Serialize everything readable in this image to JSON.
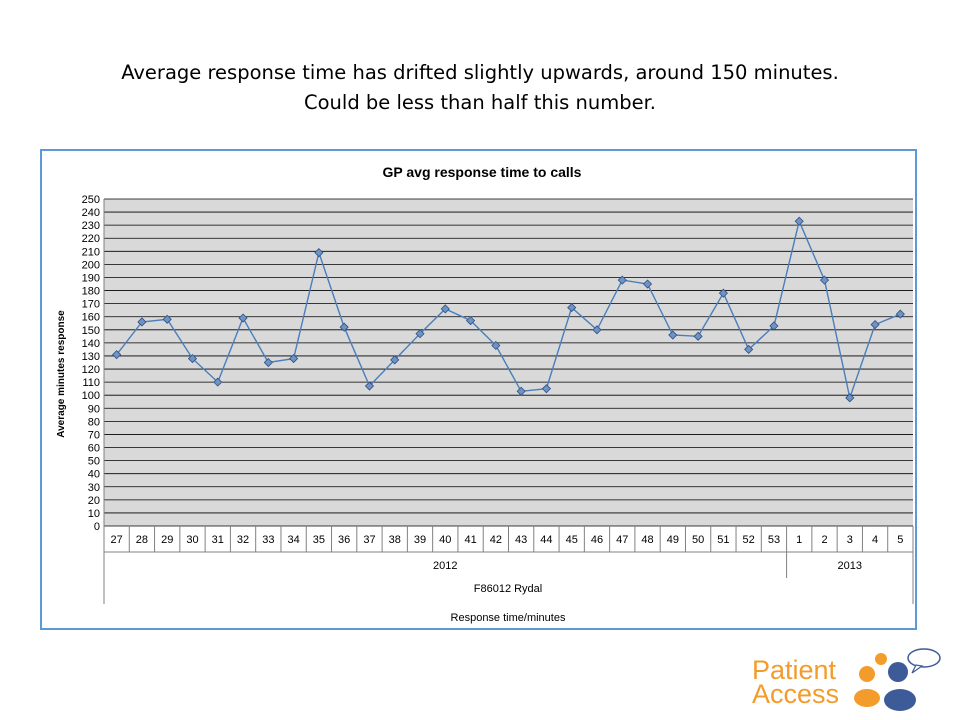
{
  "heading": {
    "line1": "Average response time has drifted slightly upwards, around 150 minutes.",
    "line2": "Could be less than half this number."
  },
  "logo": {
    "line1": "Patient",
    "line2": "Access",
    "icon": "people-speech-bubble-icon"
  },
  "colors": {
    "plot_background": "#d9d9d9",
    "line": "#4a7ebb",
    "marker": "#6f93c5",
    "frame": "#5b9bd5",
    "logo_orange": "#f39c2b",
    "logo_blue": "#3d5a99"
  },
  "chart_data": {
    "type": "line",
    "title": "GP avg response time to calls",
    "xlabel": "Response time/minutes",
    "ylabel": "Average minutes response",
    "category_label": "F86012 Rydal",
    "year_groups": [
      {
        "label": "2012",
        "count": 27
      },
      {
        "label": "2013",
        "count": 5
      }
    ],
    "categories": [
      "27",
      "28",
      "29",
      "30",
      "31",
      "32",
      "33",
      "34",
      "35",
      "36",
      "37",
      "38",
      "39",
      "40",
      "41",
      "42",
      "43",
      "44",
      "45",
      "46",
      "47",
      "48",
      "49",
      "50",
      "51",
      "52",
      "53",
      "1",
      "2",
      "3",
      "4",
      "5"
    ],
    "values": [
      131,
      156,
      158,
      128,
      110,
      159,
      125,
      128,
      209,
      152,
      107,
      127,
      147,
      166,
      157,
      138,
      103,
      105,
      167,
      150,
      188,
      185,
      146,
      145,
      178,
      135,
      153,
      233,
      188,
      98,
      154,
      162
    ],
    "ylim": [
      0,
      250
    ],
    "ytick_step": 10,
    "grid": true,
    "legend": "none"
  }
}
